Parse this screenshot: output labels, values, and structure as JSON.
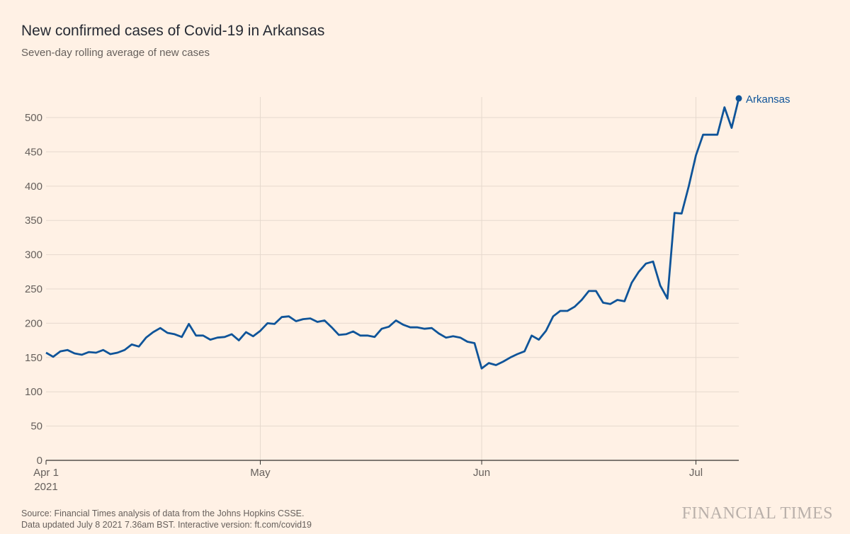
{
  "chart_data": {
    "type": "line",
    "title": "New confirmed cases of Covid-19 in Arkansas",
    "subtitle": "Seven-day rolling average of new cases",
    "xlabel": "",
    "ylabel": "",
    "ylim": [
      0,
      530
    ],
    "y_ticks": [
      0,
      50,
      100,
      150,
      200,
      250,
      300,
      350,
      400,
      450,
      500
    ],
    "x_ticks": [
      {
        "label": "Apr 1",
        "sub": "2021",
        "day": 0
      },
      {
        "label": "May",
        "sub": "",
        "day": 30
      },
      {
        "label": "Jun",
        "sub": "",
        "day": 61
      },
      {
        "label": "Jul",
        "sub": "",
        "day": 91
      }
    ],
    "x_start": "2021-04-01",
    "x_end": "2021-07-07",
    "series": [
      {
        "name": "Arkansas",
        "color": "#0f5499",
        "values": [
          157,
          151,
          159,
          161,
          156,
          154,
          158,
          157,
          161,
          155,
          157,
          161,
          169,
          166,
          179,
          187,
          193,
          186,
          184,
          180,
          199,
          182,
          182,
          176,
          179,
          180,
          184,
          175,
          187,
          181,
          189,
          200,
          199,
          209,
          210,
          203,
          206,
          207,
          202,
          204,
          194,
          183,
          184,
          188,
          182,
          182,
          180,
          192,
          195,
          204,
          198,
          194,
          194,
          192,
          193,
          185,
          179,
          181,
          179,
          173,
          171,
          134,
          142,
          139,
          144,
          150,
          155,
          159,
          182,
          176,
          189,
          210,
          218,
          218,
          224,
          234,
          247,
          247,
          230,
          228,
          234,
          232,
          259,
          275,
          287,
          290,
          255,
          236,
          361,
          360,
          400,
          445,
          475,
          475,
          475,
          515,
          485,
          528
        ]
      }
    ]
  },
  "footer": {
    "source": "Source: Financial Times analysis of data from the Johns Hopkins CSSE.",
    "updated": "Data updated July 8 2021 7.36am BST. Interactive version: ft.com/covid19"
  },
  "brand": "FINANCIAL TIMES"
}
